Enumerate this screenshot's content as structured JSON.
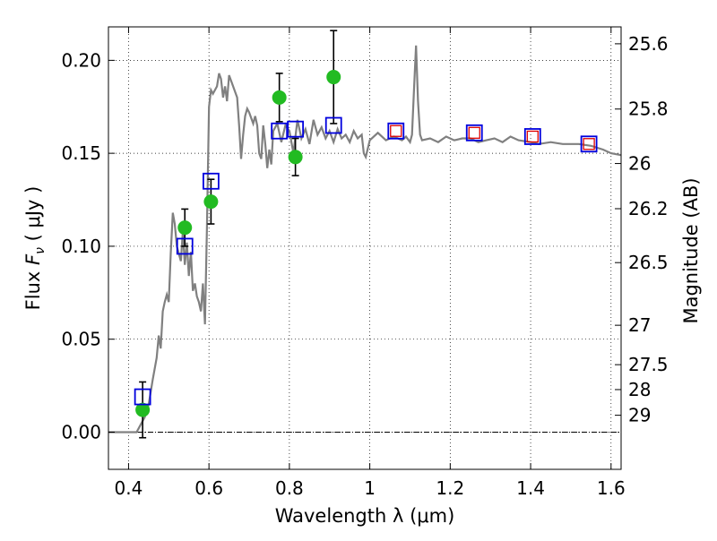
{
  "chart_data": {
    "type": "scatter",
    "xlabel": "Wavelength  λ (μm)",
    "ylabel_prefix": "Flux  ",
    "ylabel_symbol": "F",
    "ylabel_sub": "ν",
    "ylabel_suffix": "  ( μJy )",
    "y2label": "Magnitude (AB)",
    "xlim": [
      0.35,
      1.625
    ],
    "ylim": [
      -0.02,
      0.218
    ],
    "x_ticks": [
      {
        "value": 0.4,
        "label": "0.4"
      },
      {
        "value": 0.6,
        "label": "0.6"
      },
      {
        "value": 0.8,
        "label": "0.8"
      },
      {
        "value": 1.0,
        "label": "1"
      },
      {
        "value": 1.2,
        "label": "1.2"
      },
      {
        "value": 1.4,
        "label": "1.4"
      },
      {
        "value": 1.6,
        "label": "1.6"
      }
    ],
    "y_ticks": [
      {
        "value": 0.0,
        "label": "0.00"
      },
      {
        "value": 0.05,
        "label": "0.05"
      },
      {
        "value": 0.1,
        "label": "0.10"
      },
      {
        "value": 0.15,
        "label": "0.15"
      },
      {
        "value": 0.2,
        "label": "0.20"
      }
    ],
    "mag_ticks": [
      {
        "label": "25.6",
        "flux": 0.2089
      },
      {
        "label": "25.8",
        "flux": 0.1738
      },
      {
        "label": "26",
        "flux": 0.1445
      },
      {
        "label": "26.2",
        "flux": 0.1202
      },
      {
        "label": "26.5",
        "flux": 0.0912
      },
      {
        "label": "27",
        "flux": 0.0575
      },
      {
        "label": "27.5",
        "flux": 0.0363
      },
      {
        "label": "28",
        "flux": 0.0229
      },
      {
        "label": "29",
        "flux": 0.0091
      }
    ],
    "zero_line": 0.0,
    "grid": true,
    "colors": {
      "spectrum": "#808080",
      "observed": "#22bb22",
      "model_box": "#0000dd",
      "model_box_inner": "#dd0000",
      "errorbar": "#000000",
      "zero_line": "#000000"
    },
    "spectrum": [
      [
        0.35,
        0.0
      ],
      [
        0.4,
        0.0
      ],
      [
        0.42,
        0.0
      ],
      [
        0.43,
        0.004
      ],
      [
        0.44,
        0.008
      ],
      [
        0.45,
        0.015
      ],
      [
        0.46,
        0.028
      ],
      [
        0.47,
        0.04
      ],
      [
        0.475,
        0.052
      ],
      [
        0.48,
        0.045
      ],
      [
        0.485,
        0.065
      ],
      [
        0.49,
        0.07
      ],
      [
        0.495,
        0.074
      ],
      [
        0.5,
        0.07
      ],
      [
        0.505,
        0.096
      ],
      [
        0.51,
        0.118
      ],
      [
        0.515,
        0.112
      ],
      [
        0.52,
        0.1
      ],
      [
        0.53,
        0.092
      ],
      [
        0.535,
        0.108
      ],
      [
        0.54,
        0.09
      ],
      [
        0.545,
        0.102
      ],
      [
        0.55,
        0.084
      ],
      [
        0.555,
        0.097
      ],
      [
        0.56,
        0.076
      ],
      [
        0.565,
        0.08
      ],
      [
        0.57,
        0.073
      ],
      [
        0.575,
        0.07
      ],
      [
        0.58,
        0.065
      ],
      [
        0.585,
        0.08
      ],
      [
        0.59,
        0.058
      ],
      [
        0.595,
        0.11
      ],
      [
        0.6,
        0.175
      ],
      [
        0.605,
        0.184
      ],
      [
        0.61,
        0.182
      ],
      [
        0.62,
        0.186
      ],
      [
        0.625,
        0.193
      ],
      [
        0.63,
        0.19
      ],
      [
        0.635,
        0.18
      ],
      [
        0.64,
        0.186
      ],
      [
        0.645,
        0.178
      ],
      [
        0.65,
        0.192
      ],
      [
        0.66,
        0.186
      ],
      [
        0.67,
        0.18
      ],
      [
        0.675,
        0.165
      ],
      [
        0.68,
        0.147
      ],
      [
        0.685,
        0.16
      ],
      [
        0.69,
        0.17
      ],
      [
        0.695,
        0.174
      ],
      [
        0.7,
        0.172
      ],
      [
        0.71,
        0.166
      ],
      [
        0.715,
        0.17
      ],
      [
        0.72,
        0.165
      ],
      [
        0.725,
        0.15
      ],
      [
        0.73,
        0.147
      ],
      [
        0.735,
        0.165
      ],
      [
        0.74,
        0.155
      ],
      [
        0.745,
        0.142
      ],
      [
        0.75,
        0.152
      ],
      [
        0.755,
        0.144
      ],
      [
        0.76,
        0.162
      ],
      [
        0.77,
        0.166
      ],
      [
        0.78,
        0.156
      ],
      [
        0.79,
        0.165
      ],
      [
        0.8,
        0.162
      ],
      [
        0.81,
        0.15
      ],
      [
        0.82,
        0.168
      ],
      [
        0.83,
        0.158
      ],
      [
        0.84,
        0.163
      ],
      [
        0.85,
        0.155
      ],
      [
        0.86,
        0.168
      ],
      [
        0.87,
        0.16
      ],
      [
        0.88,
        0.164
      ],
      [
        0.89,
        0.158
      ],
      [
        0.9,
        0.162
      ],
      [
        0.91,
        0.156
      ],
      [
        0.92,
        0.163
      ],
      [
        0.93,
        0.158
      ],
      [
        0.94,
        0.16
      ],
      [
        0.95,
        0.156
      ],
      [
        0.96,
        0.162
      ],
      [
        0.97,
        0.158
      ],
      [
        0.98,
        0.16
      ],
      [
        0.985,
        0.15
      ],
      [
        0.99,
        0.148
      ],
      [
        1.0,
        0.157
      ],
      [
        1.02,
        0.161
      ],
      [
        1.04,
        0.157
      ],
      [
        1.06,
        0.159
      ],
      [
        1.08,
        0.157
      ],
      [
        1.09,
        0.159
      ],
      [
        1.1,
        0.156
      ],
      [
        1.105,
        0.16
      ],
      [
        1.11,
        0.185
      ],
      [
        1.115,
        0.208
      ],
      [
        1.12,
        0.178
      ],
      [
        1.125,
        0.16
      ],
      [
        1.13,
        0.157
      ],
      [
        1.15,
        0.158
      ],
      [
        1.17,
        0.156
      ],
      [
        1.19,
        0.159
      ],
      [
        1.21,
        0.157
      ],
      [
        1.23,
        0.158
      ],
      [
        1.25,
        0.158
      ],
      [
        1.27,
        0.156
      ],
      [
        1.29,
        0.157
      ],
      [
        1.31,
        0.158
      ],
      [
        1.33,
        0.156
      ],
      [
        1.35,
        0.159
      ],
      [
        1.37,
        0.157
      ],
      [
        1.4,
        0.156
      ],
      [
        1.42,
        0.155
      ],
      [
        1.45,
        0.156
      ],
      [
        1.48,
        0.155
      ],
      [
        1.5,
        0.155
      ],
      [
        1.52,
        0.155
      ],
      [
        1.55,
        0.154
      ],
      [
        1.58,
        0.152
      ],
      [
        1.6,
        0.15
      ],
      [
        1.625,
        0.149
      ]
    ],
    "observed": [
      {
        "x": 0.435,
        "y": 0.012,
        "err": 0.015
      },
      {
        "x": 0.54,
        "y": 0.11,
        "err": 0.01
      },
      {
        "x": 0.605,
        "y": 0.124,
        "err": 0.012
      },
      {
        "x": 0.775,
        "y": 0.18,
        "err": 0.013
      },
      {
        "x": 0.815,
        "y": 0.148,
        "err": 0.01
      },
      {
        "x": 0.91,
        "y": 0.191,
        "err": 0.025
      }
    ],
    "model_boxes": [
      {
        "x": 0.435,
        "y": 0.019,
        "inner": false
      },
      {
        "x": 0.54,
        "y": 0.1,
        "inner": false
      },
      {
        "x": 0.605,
        "y": 0.135,
        "inner": false
      },
      {
        "x": 0.775,
        "y": 0.162,
        "inner": false
      },
      {
        "x": 0.815,
        "y": 0.163,
        "inner": false
      },
      {
        "x": 0.91,
        "y": 0.165,
        "inner": false
      },
      {
        "x": 1.065,
        "y": 0.162,
        "inner": true
      },
      {
        "x": 1.26,
        "y": 0.161,
        "inner": true
      },
      {
        "x": 1.405,
        "y": 0.159,
        "inner": true
      },
      {
        "x": 1.545,
        "y": 0.155,
        "inner": true
      }
    ]
  }
}
